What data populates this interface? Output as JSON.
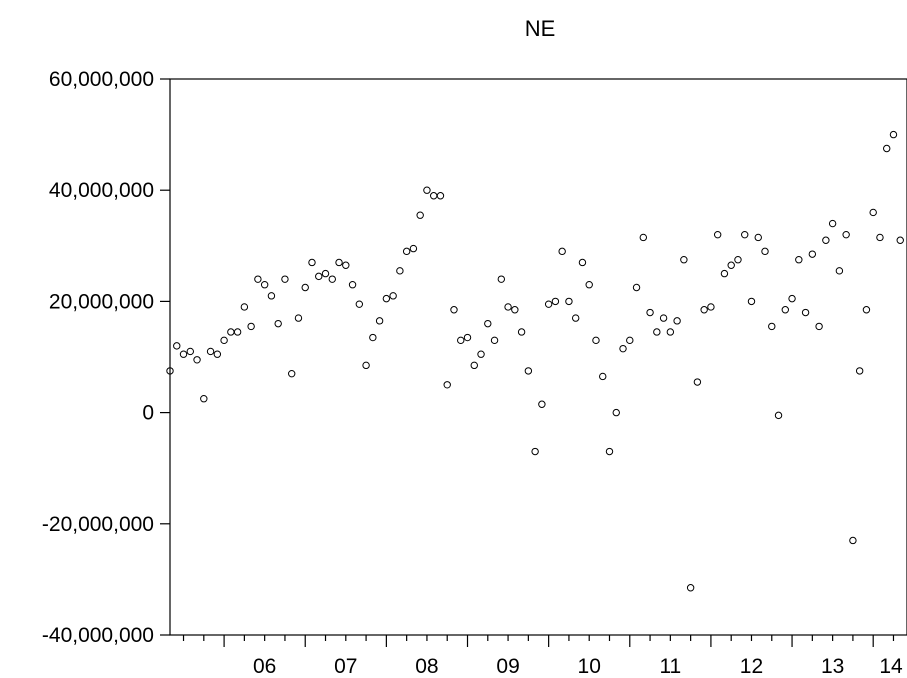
{
  "chart_data": {
    "type": "scatter",
    "title": "NE",
    "xlabel": "",
    "ylabel": "",
    "ylim": [
      -40000000,
      60000000
    ],
    "y_ticks": [
      {
        "value": 60000000,
        "label": "60,000,000"
      },
      {
        "value": 40000000,
        "label": "40,000,000"
      },
      {
        "value": 20000000,
        "label": "20,000,000"
      },
      {
        "value": 0,
        "label": "0"
      },
      {
        "value": -20000000,
        "label": "-20,000,000"
      },
      {
        "value": -40000000,
        "label": "-40,000,000"
      }
    ],
    "x_year_labels": [
      "06",
      "07",
      "08",
      "09",
      "10",
      "11",
      "12",
      "13",
      "14"
    ],
    "x_start": "2005-05",
    "x_end": "2014-06",
    "point_style": "hollow-circle",
    "series": [
      {
        "values": [
          7500000,
          12000000,
          10500000,
          11000000,
          9500000,
          2500000,
          11000000,
          10500000,
          13000000,
          14500000,
          14500000,
          19000000,
          15500000,
          24000000,
          23000000,
          21000000,
          16000000,
          24000000,
          7000000,
          17000000,
          22500000,
          27000000,
          24500000,
          25000000,
          24000000,
          27000000,
          26500000,
          23000000,
          19500000,
          8500000,
          13500000,
          16500000,
          20500000,
          21000000,
          25500000,
          29000000,
          29500000,
          35500000,
          40000000,
          39000000,
          39000000,
          5000000,
          18500000,
          13000000,
          13500000,
          8500000,
          10500000,
          16000000,
          13000000,
          24000000,
          19000000,
          18500000,
          14500000,
          7500000,
          -7000000,
          1500000,
          19500000,
          20000000,
          29000000,
          20000000,
          17000000,
          27000000,
          23000000,
          13000000,
          6500000,
          -7000000,
          0,
          11500000,
          13000000,
          22500000,
          31500000,
          18000000,
          14500000,
          17000000,
          14500000,
          16500000,
          27500000,
          -31500000,
          5500000,
          18500000,
          19000000,
          32000000,
          25000000,
          26500000,
          27500000,
          32000000,
          20000000,
          31500000,
          29000000,
          15500000,
          -500000,
          18500000,
          20500000,
          27500000,
          18000000,
          28500000,
          15500000,
          31000000,
          34000000,
          25500000,
          32000000,
          -23000000,
          7500000,
          18500000,
          36000000,
          31500000,
          47500000,
          50000000,
          31000000
        ]
      }
    ]
  }
}
